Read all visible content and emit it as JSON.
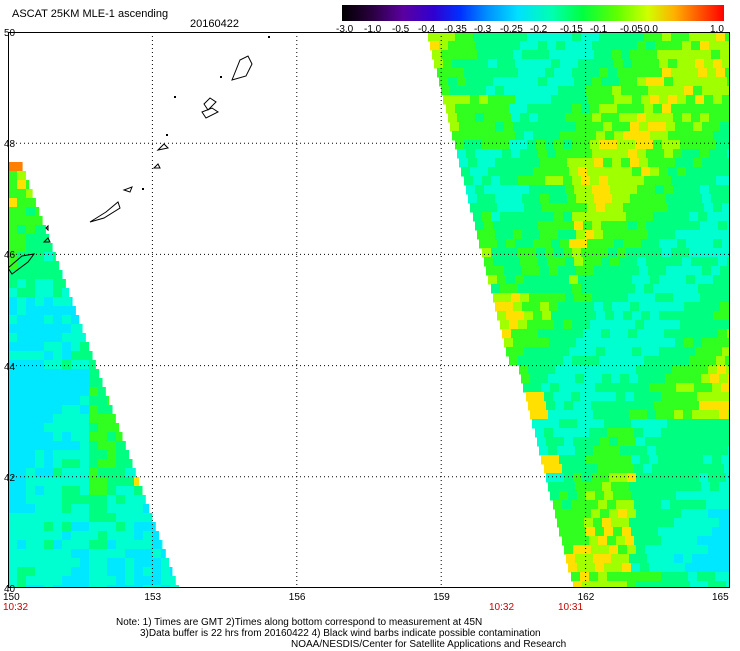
{
  "header": {
    "title": "ASCAT 25KM MLE-1 ascending",
    "date": "20160422"
  },
  "colorbar": {
    "ticks": [
      "-3.0",
      "-1.0",
      "-0.5",
      "-0.4",
      "-0.35",
      "-0.3",
      "-0.25",
      "-0.2",
      "-0.15",
      "-0.1",
      "-0.05",
      "0.0",
      "1.0"
    ],
    "colors": [
      "#000000",
      "#2a0040",
      "#5a00a0",
      "#3000d0",
      "#0030ff",
      "#0090ff",
      "#00e0ff",
      "#00ffb0",
      "#00ff40",
      "#60ff00",
      "#d0ff00",
      "#ffb000",
      "#ff5000",
      "#ff0000"
    ]
  },
  "map": {
    "lat_labels": [
      "50",
      "48",
      "46",
      "44",
      "42",
      "40"
    ],
    "lon_labels": [
      "150",
      "153",
      "156",
      "159",
      "162",
      "165"
    ],
    "time_labels": [
      {
        "text": "10:32",
        "at": "150"
      },
      {
        "text": "10:32",
        "at": "swath-2-left"
      },
      {
        "text": "10:31",
        "at": "162"
      }
    ]
  },
  "notes": [
    "Note: 1) Times are GMT 2)Times along bottom correspond to measurement at 45N",
    "3)Data buffer is 22 hrs from 20160422 4) Black wind barbs indicate possible contamination",
    "NOAA/NESDIS/Center for Satellite Applications and Research"
  ]
}
